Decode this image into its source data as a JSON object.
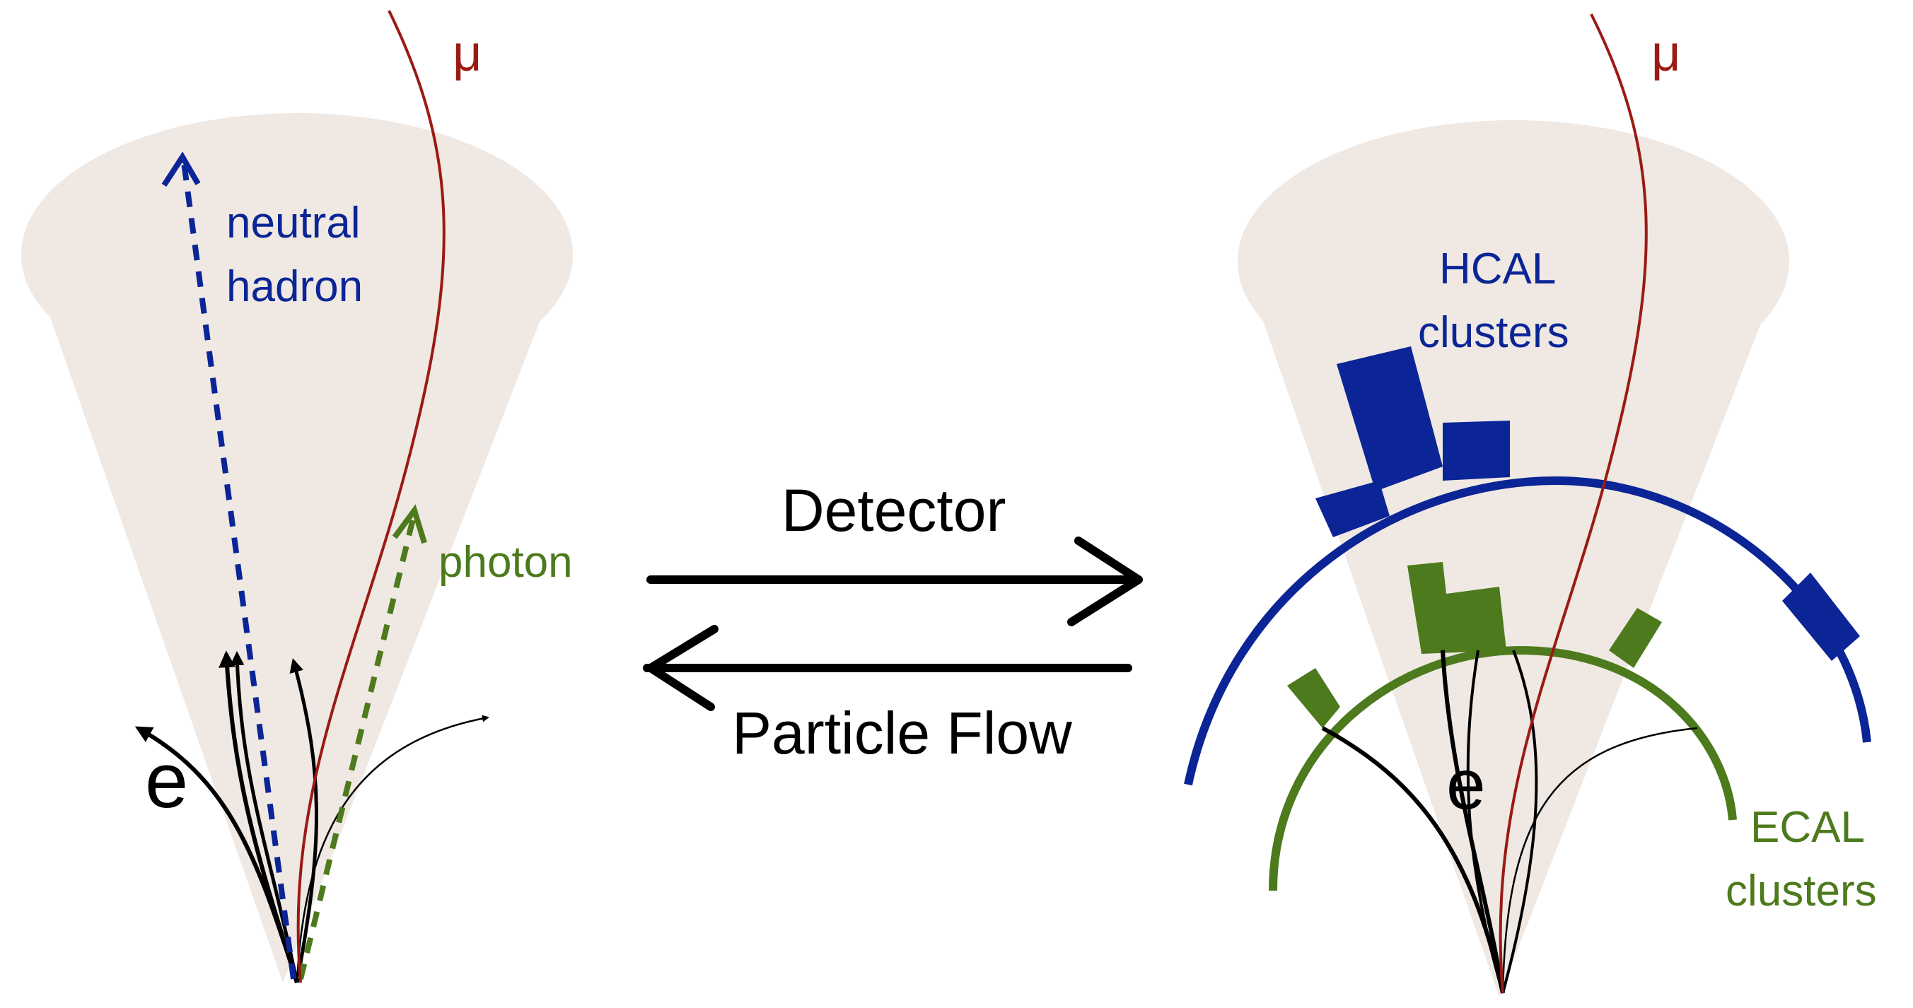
{
  "labels": {
    "mu_left": "μ",
    "mu_right": "μ",
    "neutral_hadron_line1": "neutral",
    "neutral_hadron_line2": "hadron",
    "photon": "photon",
    "electron_left": "e",
    "electron_right": "e",
    "detector": "Detector",
    "particle_flow": "Particle Flow",
    "hcal_line1": "HCAL",
    "hcal_line2": "clusters",
    "ecal_line1": "ECAL",
    "ecal_line2": "clusters"
  },
  "colors": {
    "cone": "#efe8e3",
    "muon": "#9b1a14",
    "neutral_hadron": "#0b2596",
    "photon": "#4c7a1c",
    "hcal": "#0b2596",
    "ecal": "#4c7a1c",
    "track": "#000000"
  }
}
